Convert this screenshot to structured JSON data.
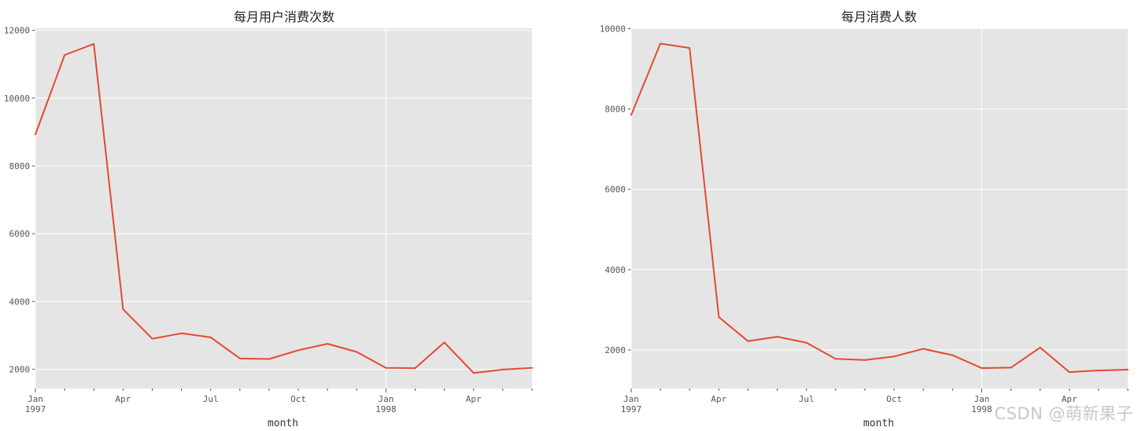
{
  "watermark": "CSDN @萌新果子",
  "chart_data": [
    {
      "type": "line",
      "title": "每月用户消费次数",
      "xlabel": "month",
      "ylabel": "",
      "x": [
        "1997-01",
        "1997-02",
        "1997-03",
        "1997-04",
        "1997-05",
        "1997-06",
        "1997-07",
        "1997-08",
        "1997-09",
        "1997-10",
        "1997-11",
        "1997-12",
        "1998-01",
        "1998-02",
        "1998-03",
        "1998-04",
        "1998-05",
        "1998-06"
      ],
      "xticks": [
        {
          "label": "Jan",
          "year": "1997",
          "major": true
        },
        {
          "label": "",
          "year": "",
          "major": false
        },
        {
          "label": "",
          "year": "",
          "major": false
        },
        {
          "label": "Apr",
          "year": "",
          "major": false
        },
        {
          "label": "",
          "year": "",
          "major": false
        },
        {
          "label": "",
          "year": "",
          "major": false
        },
        {
          "label": "Jul",
          "year": "",
          "major": false
        },
        {
          "label": "",
          "year": "",
          "major": false
        },
        {
          "label": "",
          "year": "",
          "major": false
        },
        {
          "label": "Oct",
          "year": "",
          "major": false
        },
        {
          "label": "",
          "year": "",
          "major": false
        },
        {
          "label": "",
          "year": "",
          "major": false
        },
        {
          "label": "Jan",
          "year": "1998",
          "major": true
        },
        {
          "label": "",
          "year": "",
          "major": false
        },
        {
          "label": "",
          "year": "",
          "major": false
        },
        {
          "label": "Apr",
          "year": "",
          "major": false
        },
        {
          "label": "",
          "year": "",
          "major": false
        },
        {
          "label": "",
          "year": "",
          "major": false
        }
      ],
      "yticks": [
        2000,
        4000,
        6000,
        8000,
        10000,
        12000
      ],
      "ylim": [
        1430,
        12060
      ],
      "grid": true,
      "series": [
        {
          "color": "#e24a33",
          "values": [
            8930,
            11270,
            11600,
            3770,
            2900,
            3060,
            2940,
            2320,
            2300,
            2560,
            2750,
            2510,
            2040,
            2030,
            2790,
            1890,
            1990,
            2040
          ]
        }
      ]
    },
    {
      "type": "line",
      "title": "每月消费人数",
      "xlabel": "month",
      "ylabel": "",
      "x": [
        "1997-01",
        "1997-02",
        "1997-03",
        "1997-04",
        "1997-05",
        "1997-06",
        "1997-07",
        "1997-08",
        "1997-09",
        "1997-10",
        "1997-11",
        "1997-12",
        "1998-01",
        "1998-02",
        "1998-03",
        "1998-04",
        "1998-05",
        "1998-06"
      ],
      "xticks": [
        {
          "label": "Jan",
          "year": "1997",
          "major": true
        },
        {
          "label": "",
          "year": "",
          "major": false
        },
        {
          "label": "",
          "year": "",
          "major": false
        },
        {
          "label": "Apr",
          "year": "",
          "major": false
        },
        {
          "label": "",
          "year": "",
          "major": false
        },
        {
          "label": "",
          "year": "",
          "major": false
        },
        {
          "label": "Jul",
          "year": "",
          "major": false
        },
        {
          "label": "",
          "year": "",
          "major": false
        },
        {
          "label": "",
          "year": "",
          "major": false
        },
        {
          "label": "Oct",
          "year": "",
          "major": false
        },
        {
          "label": "",
          "year": "",
          "major": false
        },
        {
          "label": "",
          "year": "",
          "major": false
        },
        {
          "label": "Jan",
          "year": "1998",
          "major": true
        },
        {
          "label": "",
          "year": "",
          "major": false
        },
        {
          "label": "",
          "year": "",
          "major": false
        },
        {
          "label": "Apr",
          "year": "",
          "major": false
        },
        {
          "label": "",
          "year": "",
          "major": false
        },
        {
          "label": "",
          "year": "",
          "major": false
        }
      ],
      "yticks": [
        2000,
        4000,
        6000,
        8000,
        10000
      ],
      "ylim": [
        1040,
        10010
      ],
      "grid": true,
      "series": [
        {
          "color": "#e24a33",
          "values": [
            7850,
            9630,
            9520,
            2820,
            2220,
            2330,
            2180,
            1780,
            1750,
            1840,
            2030,
            1870,
            1550,
            1560,
            2060,
            1450,
            1490,
            1510
          ]
        }
      ]
    }
  ]
}
